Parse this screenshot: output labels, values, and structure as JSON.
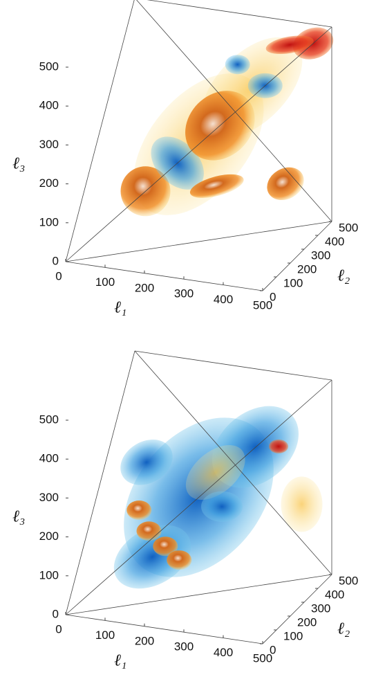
{
  "chart_data": [
    {
      "type": "volume3d",
      "xlabel": "ℓ₁",
      "ylabel": "ℓ₂",
      "zlabel": "ℓ₃",
      "xlim": [
        0,
        500
      ],
      "xticks": [
        0,
        100,
        200,
        300,
        400,
        500
      ],
      "ylim": [
        0,
        500
      ],
      "yticks": [
        0,
        100,
        200,
        300,
        400,
        500
      ],
      "zlim": [
        0,
        500
      ],
      "zticks": [
        0,
        100,
        200,
        300,
        400,
        500
      ]
    },
    {
      "type": "volume3d",
      "xlabel": "ℓ₁",
      "ylabel": "ℓ₂",
      "zlabel": "ℓ₃",
      "xlim": [
        0,
        500
      ],
      "xticks": [
        0,
        100,
        200,
        300,
        400,
        500
      ],
      "ylim": [
        0,
        500
      ],
      "yticks": [
        0,
        100,
        200,
        300,
        400,
        500
      ],
      "zlim": [
        0,
        500
      ],
      "zticks": [
        0,
        100,
        200,
        300,
        400,
        500
      ]
    }
  ]
}
